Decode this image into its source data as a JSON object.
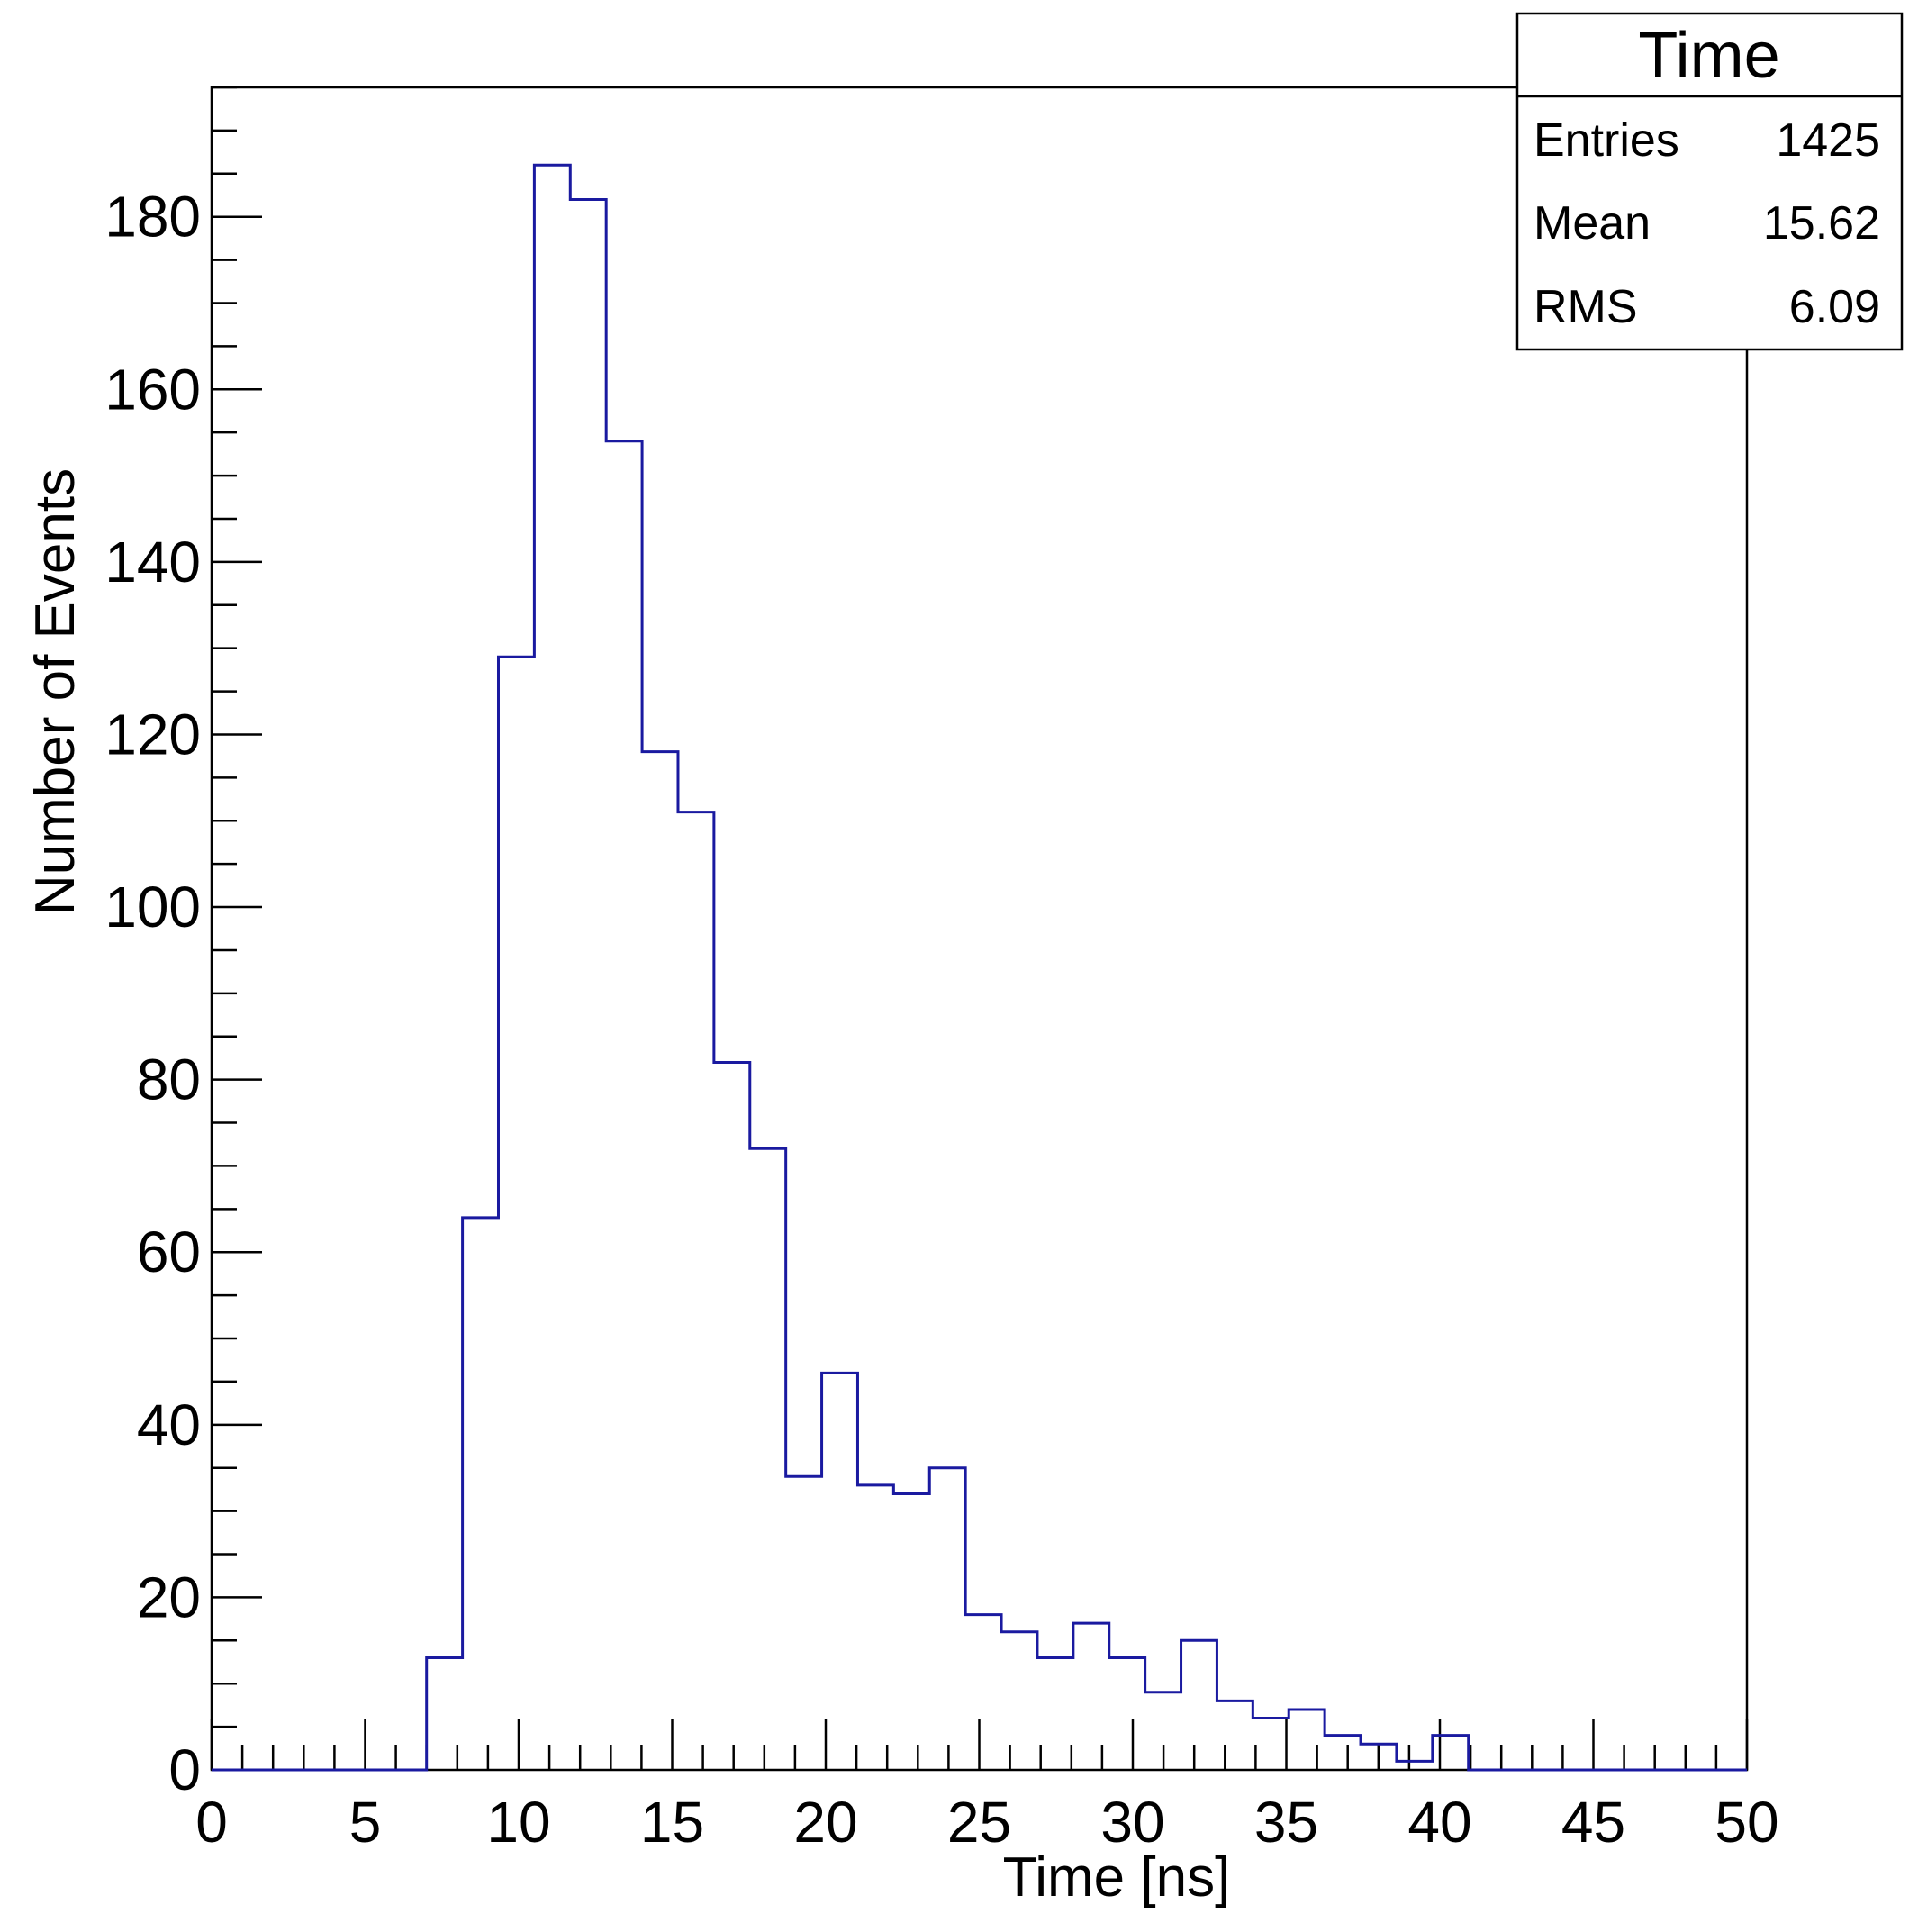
{
  "chart_data": {
    "type": "bar",
    "histogram": true,
    "bin_width": 1.17,
    "bin_start": 7.0,
    "values": [
      13,
      64,
      129,
      186,
      182,
      154,
      118,
      111,
      82,
      72,
      34,
      46,
      33,
      32,
      35,
      18,
      16,
      13,
      17,
      13,
      9,
      15,
      8,
      6,
      7,
      4,
      3,
      1,
      4
    ],
    "xlabel": "Time [ns]",
    "ylabel": "Number of Events",
    "xlim": [
      0,
      50
    ],
    "ylim": [
      0,
      195
    ],
    "x_ticks": [
      "0",
      "5",
      "10",
      "15",
      "20",
      "25",
      "30",
      "35",
      "40",
      "45",
      "50"
    ],
    "y_ticks": [
      "0",
      "20",
      "40",
      "60",
      "80",
      "100",
      "120",
      "140",
      "160",
      "180"
    ],
    "line_color": "#1a1aa0",
    "grid": false,
    "stats_box": {
      "title": "Time",
      "rows": [
        {
          "label": "Entries",
          "value": "1425"
        },
        {
          "label": "Mean",
          "value": "15.62"
        },
        {
          "label": "RMS",
          "value": "6.09"
        }
      ]
    }
  }
}
